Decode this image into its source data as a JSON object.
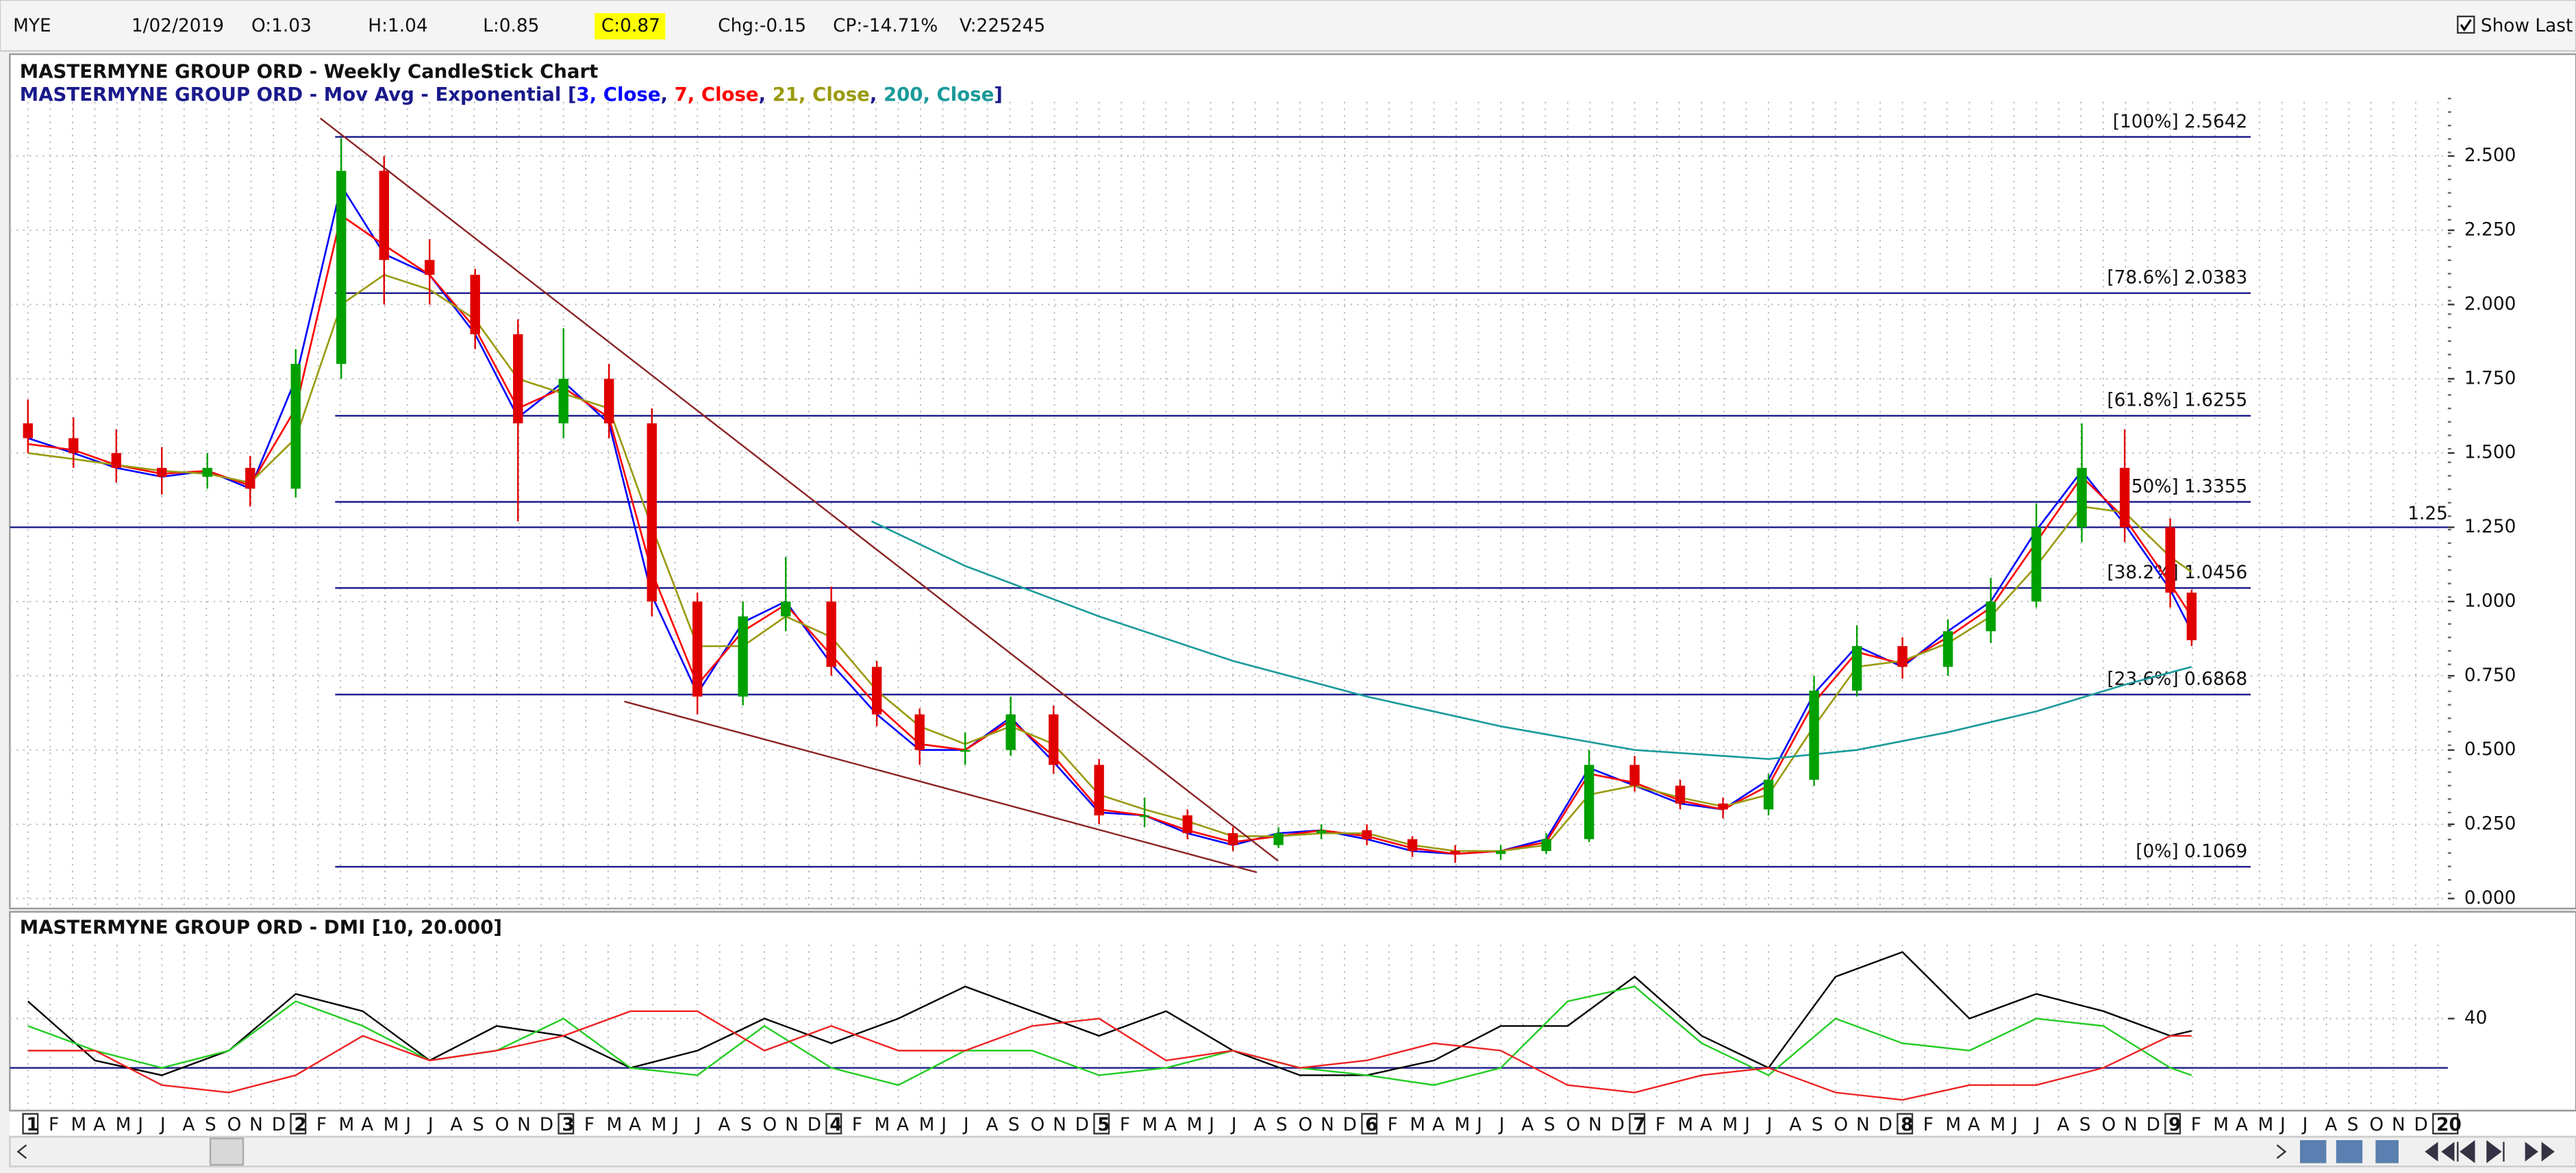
{
  "header": {
    "symbol": "MYE",
    "date": "1/02/2019",
    "open": "O:1.03",
    "high": "H:1.04",
    "low": "L:0.85",
    "close": "C:0.87",
    "change": "Chg:-0.15",
    "change_percent": "CP:-14.71%",
    "volume": "V:225245",
    "show_last": "Show Last"
  },
  "chart_data": [
    {
      "type": "candlestick",
      "title": "MASTERMYNE GROUP ORD - Weekly CandleStick Chart",
      "subtitle": {
        "prefix": "MASTERMYNE GROUP ORD - Mov Avg - Exponential [",
        "separator": ", ",
        "suffix": "]"
      },
      "xlim": [
        2011,
        2020
      ],
      "x_labels": [
        "1",
        "F",
        "M",
        "A",
        "M",
        "J",
        "J",
        "A",
        "S",
        "O",
        "N",
        "D",
        "2",
        "F",
        "M",
        "A",
        "M",
        "J",
        "J",
        "A",
        "S",
        "O",
        "N",
        "D",
        "3",
        "F",
        "M",
        "A",
        "M",
        "J",
        "J",
        "A",
        "S",
        "O",
        "N",
        "D",
        "4",
        "F",
        "M",
        "A",
        "M",
        "J",
        "J",
        "A",
        "S",
        "O",
        "N",
        "D",
        "5",
        "F",
        "M",
        "A",
        "M",
        "J",
        "J",
        "A",
        "S",
        "O",
        "N",
        "D",
        "6",
        "F",
        "M",
        "A",
        "M",
        "J",
        "J",
        "A",
        "S",
        "O",
        "N",
        "D",
        "7",
        "F",
        "M",
        "A",
        "M",
        "J",
        "J",
        "A",
        "S",
        "O",
        "N",
        "D",
        "8",
        "F",
        "M",
        "A",
        "M",
        "J",
        "J",
        "A",
        "S",
        "O",
        "N",
        "D",
        "9",
        "F",
        "M",
        "A",
        "M",
        "J",
        "J",
        "A",
        "S",
        "O",
        "N",
        "D",
        "20"
      ],
      "x": [
        2011.0,
        2011.17,
        2011.33,
        2011.5,
        2011.67,
        2011.83,
        2012.0,
        2012.17,
        2012.33,
        2012.5,
        2012.67,
        2012.83,
        2013.0,
        2013.17,
        2013.33,
        2013.5,
        2013.67,
        2013.83,
        2014.0,
        2014.17,
        2014.33,
        2014.5,
        2014.67,
        2014.83,
        2015.0,
        2015.17,
        2015.33,
        2015.5,
        2015.67,
        2015.83,
        2016.0,
        2016.17,
        2016.33,
        2016.5,
        2016.67,
        2016.83,
        2017.0,
        2017.17,
        2017.33,
        2017.5,
        2017.67,
        2017.83,
        2018.0,
        2018.17,
        2018.33,
        2018.5,
        2018.67,
        2018.83,
        2019.0,
        2019.08
      ],
      "open": [
        1.6,
        1.55,
        1.5,
        1.45,
        1.42,
        1.45,
        1.38,
        1.8,
        2.45,
        2.15,
        2.1,
        1.9,
        1.6,
        1.75,
        1.6,
        1.0,
        0.68,
        0.95,
        1.0,
        0.78,
        0.62,
        0.5,
        0.5,
        0.62,
        0.45,
        0.28,
        0.28,
        0.22,
        0.18,
        0.22,
        0.23,
        0.2,
        0.16,
        0.15,
        0.16,
        0.2,
        0.45,
        0.38,
        0.32,
        0.3,
        0.4,
        0.7,
        0.85,
        0.78,
        0.9,
        1.0,
        1.25,
        1.45,
        1.25,
        1.03
      ],
      "high": [
        1.68,
        1.62,
        1.58,
        1.52,
        1.5,
        1.49,
        1.85,
        2.56,
        2.5,
        2.22,
        2.12,
        1.95,
        1.92,
        1.8,
        1.65,
        1.03,
        1.0,
        1.15,
        1.05,
        0.8,
        0.64,
        0.56,
        0.68,
        0.65,
        0.47,
        0.34,
        0.3,
        0.24,
        0.24,
        0.25,
        0.25,
        0.21,
        0.18,
        0.18,
        0.22,
        0.5,
        0.48,
        0.4,
        0.34,
        0.42,
        0.75,
        0.92,
        0.88,
        0.94,
        1.08,
        1.33,
        1.6,
        1.58,
        1.28,
        1.04
      ],
      "low": [
        1.5,
        1.45,
        1.4,
        1.36,
        1.38,
        1.32,
        1.35,
        1.75,
        2.0,
        2.0,
        1.85,
        1.27,
        1.55,
        1.55,
        0.95,
        0.62,
        0.65,
        0.9,
        0.75,
        0.58,
        0.45,
        0.45,
        0.48,
        0.42,
        0.25,
        0.24,
        0.2,
        0.16,
        0.17,
        0.2,
        0.18,
        0.14,
        0.12,
        0.13,
        0.15,
        0.19,
        0.36,
        0.3,
        0.27,
        0.28,
        0.38,
        0.68,
        0.74,
        0.75,
        0.86,
        0.98,
        1.2,
        1.2,
        0.98,
        0.85
      ],
      "close": [
        1.55,
        1.5,
        1.45,
        1.42,
        1.45,
        1.38,
        1.8,
        2.45,
        2.15,
        2.1,
        1.9,
        1.6,
        1.75,
        1.6,
        1.0,
        0.68,
        0.95,
        1.0,
        0.78,
        0.62,
        0.5,
        0.5,
        0.62,
        0.45,
        0.28,
        0.28,
        0.22,
        0.18,
        0.22,
        0.23,
        0.2,
        0.16,
        0.15,
        0.16,
        0.2,
        0.45,
        0.38,
        0.32,
        0.3,
        0.4,
        0.7,
        0.85,
        0.78,
        0.9,
        1.0,
        1.25,
        1.45,
        1.25,
        1.03,
        0.87
      ],
      "up_color": "#00a000",
      "down_color": "#e00000",
      "series": [
        {
          "name": "3, Close",
          "color": "#0000ff",
          "values": [
            1.55,
            1.5,
            1.45,
            1.42,
            1.44,
            1.38,
            1.75,
            2.4,
            2.17,
            2.1,
            1.9,
            1.62,
            1.74,
            1.6,
            1.02,
            0.69,
            0.93,
            1.0,
            0.79,
            0.62,
            0.5,
            0.5,
            0.61,
            0.46,
            0.29,
            0.28,
            0.22,
            0.18,
            0.22,
            0.23,
            0.2,
            0.16,
            0.15,
            0.16,
            0.2,
            0.44,
            0.38,
            0.32,
            0.3,
            0.4,
            0.69,
            0.85,
            0.78,
            0.9,
            1.0,
            1.24,
            1.44,
            1.26,
            1.04,
            0.9
          ]
        },
        {
          "name": "7, Close",
          "color": "#ff0000",
          "values": [
            1.53,
            1.51,
            1.46,
            1.43,
            1.44,
            1.39,
            1.65,
            2.3,
            2.2,
            2.1,
            1.92,
            1.65,
            1.72,
            1.62,
            1.1,
            0.72,
            0.9,
            0.99,
            0.82,
            0.65,
            0.52,
            0.5,
            0.6,
            0.48,
            0.3,
            0.28,
            0.23,
            0.19,
            0.21,
            0.23,
            0.21,
            0.17,
            0.15,
            0.16,
            0.19,
            0.42,
            0.39,
            0.33,
            0.3,
            0.38,
            0.66,
            0.83,
            0.79,
            0.88,
            0.98,
            1.2,
            1.42,
            1.28,
            1.06,
            0.95
          ]
        },
        {
          "name": "21, Close",
          "color": "#9a9a10",
          "values": [
            1.5,
            1.48,
            1.46,
            1.44,
            1.43,
            1.4,
            1.55,
            2.0,
            2.1,
            2.05,
            1.95,
            1.75,
            1.7,
            1.65,
            1.25,
            0.85,
            0.85,
            0.95,
            0.88,
            0.7,
            0.58,
            0.52,
            0.58,
            0.52,
            0.35,
            0.3,
            0.26,
            0.21,
            0.21,
            0.22,
            0.22,
            0.18,
            0.16,
            0.16,
            0.18,
            0.35,
            0.38,
            0.34,
            0.31,
            0.35,
            0.58,
            0.78,
            0.8,
            0.86,
            0.95,
            1.12,
            1.32,
            1.3,
            1.15,
            1.1
          ]
        },
        {
          "name": "200, Close",
          "color": "#1a9a9a",
          "x": [
            2014.15,
            2014.5,
            2015.0,
            2015.5,
            2016.0,
            2016.5,
            2017.0,
            2017.5,
            2017.83,
            2018.17,
            2018.5,
            2018.83,
            2019.08
          ],
          "values": [
            1.27,
            1.12,
            0.95,
            0.8,
            0.68,
            0.58,
            0.5,
            0.47,
            0.5,
            0.56,
            0.63,
            0.72,
            0.78
          ]
        }
      ],
      "fib_levels": [
        {
          "value": 2.5642,
          "label": "[100%] 2.5642"
        },
        {
          "value": 2.0383,
          "label": "[78.6%] 2.0383"
        },
        {
          "value": 1.6255,
          "label": "[61.8%] 1.6255"
        },
        {
          "value": 1.3355,
          "label": "[50%] 1.3355"
        },
        {
          "value": 1.0456,
          "label": "[38.2%] 1.0456"
        },
        {
          "value": 0.6868,
          "label": "[23.6%] 0.6868"
        },
        {
          "value": 0.1069,
          "label": "[0%] 0.1069"
        }
      ],
      "hline": 1.25,
      "ylim": [
        -0.028,
        2.804
      ],
      "yticks": [
        {
          "value": 0,
          "label": "0.000"
        },
        {
          "value": 0.25,
          "label": "0.250"
        },
        {
          "value": 0.5,
          "label": "0.500"
        },
        {
          "value": 0.75,
          "label": "0.750"
        },
        {
          "value": 1,
          "label": "1.000"
        },
        {
          "value": 1.25,
          "label": "1.250"
        },
        {
          "value": 1.5,
          "label": "1.500"
        },
        {
          "value": 1.75,
          "label": "1.750"
        },
        {
          "value": 2,
          "label": "2.000"
        },
        {
          "value": 2.25,
          "label": "2.250"
        },
        {
          "value": 2.5,
          "label": "2.500"
        }
      ],
      "grid": true
    },
    {
      "type": "line",
      "title": "MASTERMYNE GROUP ORD - DMI [10, 20.000]",
      "xlim": [
        2011,
        2020
      ],
      "x": [
        2011.0,
        2011.25,
        2011.5,
        2011.75,
        2012.0,
        2012.25,
        2012.5,
        2012.75,
        2013.0,
        2013.25,
        2013.5,
        2013.75,
        2014.0,
        2014.25,
        2014.5,
        2014.75,
        2015.0,
        2015.25,
        2015.5,
        2015.75,
        2016.0,
        2016.25,
        2016.5,
        2016.75,
        2017.0,
        2017.25,
        2017.5,
        2017.75,
        2018.0,
        2018.25,
        2018.5,
        2018.75,
        2019.0,
        2019.08
      ],
      "series": [
        {
          "color": "#000000",
          "values": [
            47,
            23,
            17,
            27,
            50,
            43,
            23,
            37,
            33,
            20,
            27,
            40,
            30,
            40,
            53,
            43,
            33,
            43,
            27,
            17,
            17,
            23,
            37,
            37,
            57,
            33,
            20,
            57,
            67,
            40,
            50,
            43,
            33,
            35
          ]
        },
        {
          "color": "#22cc22",
          "values": [
            37,
            27,
            20,
            27,
            47,
            37,
            23,
            27,
            40,
            20,
            17,
            37,
            20,
            13,
            27,
            27,
            17,
            20,
            27,
            20,
            17,
            13,
            20,
            47,
            53,
            30,
            17,
            40,
            30,
            27,
            40,
            37,
            20,
            17
          ]
        },
        {
          "color": "#ee2222",
          "values": [
            27,
            27,
            13,
            10,
            17,
            33,
            23,
            27,
            33,
            43,
            43,
            27,
            37,
            27,
            27,
            37,
            40,
            23,
            27,
            20,
            23,
            30,
            27,
            13,
            10,
            17,
            20,
            10,
            7,
            13,
            13,
            20,
            33,
            33
          ]
        }
      ],
      "threshold": 20,
      "ylim": [
        2.7,
        83.3
      ],
      "yticks": [
        40
      ],
      "grid": true
    }
  ]
}
